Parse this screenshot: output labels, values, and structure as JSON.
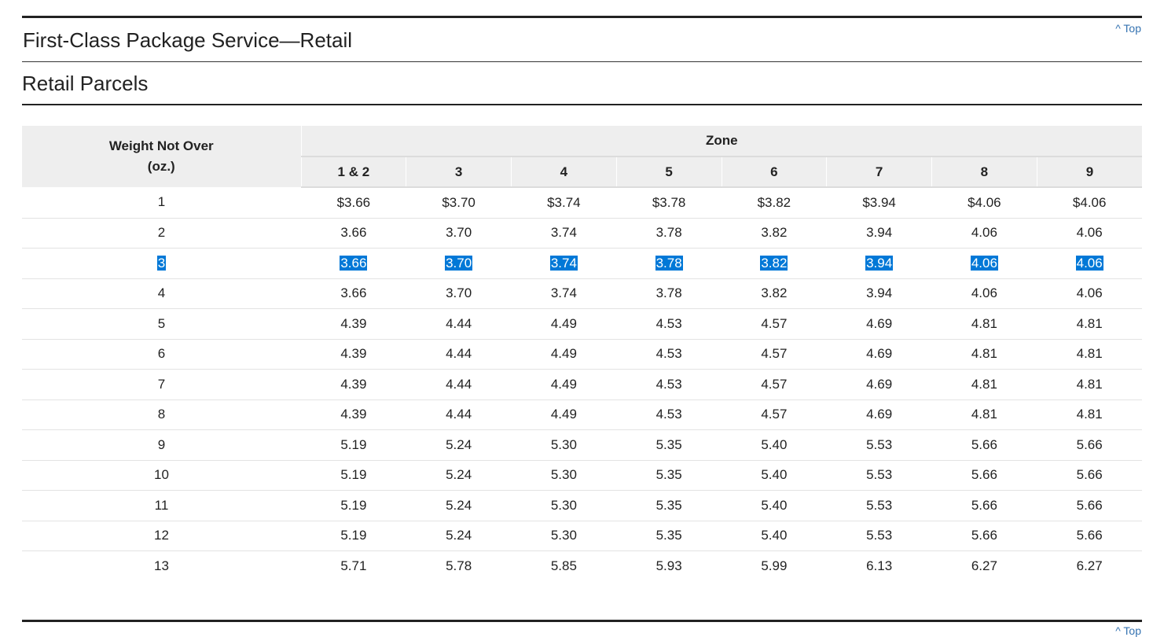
{
  "top_link": "^ Top",
  "service_title": "First-Class Package Service—Retail",
  "section_title": "Retail Parcels",
  "table": {
    "weight_header_line1": "Weight Not Over",
    "weight_header_line2": "(oz.)",
    "zone_header": "Zone",
    "zones": [
      "1 & 2",
      "3",
      "4",
      "5",
      "6",
      "7",
      "8",
      "9"
    ],
    "selected_row_index": 2,
    "selection_color": "#0078d7",
    "rows": [
      {
        "weight": "1",
        "prices": [
          "$3.66",
          "$3.70",
          "$3.74",
          "$3.78",
          "$3.82",
          "$3.94",
          "$4.06",
          "$4.06"
        ]
      },
      {
        "weight": "2",
        "prices": [
          "3.66",
          "3.70",
          "3.74",
          "3.78",
          "3.82",
          "3.94",
          "4.06",
          "4.06"
        ]
      },
      {
        "weight": "3",
        "prices": [
          "3.66",
          "3.70",
          "3.74",
          "3.78",
          "3.82",
          "3.94",
          "4.06",
          "4.06"
        ]
      },
      {
        "weight": "4",
        "prices": [
          "3.66",
          "3.70",
          "3.74",
          "3.78",
          "3.82",
          "3.94",
          "4.06",
          "4.06"
        ]
      },
      {
        "weight": "5",
        "prices": [
          "4.39",
          "4.44",
          "4.49",
          "4.53",
          "4.57",
          "4.69",
          "4.81",
          "4.81"
        ]
      },
      {
        "weight": "6",
        "prices": [
          "4.39",
          "4.44",
          "4.49",
          "4.53",
          "4.57",
          "4.69",
          "4.81",
          "4.81"
        ]
      },
      {
        "weight": "7",
        "prices": [
          "4.39",
          "4.44",
          "4.49",
          "4.53",
          "4.57",
          "4.69",
          "4.81",
          "4.81"
        ]
      },
      {
        "weight": "8",
        "prices": [
          "4.39",
          "4.44",
          "4.49",
          "4.53",
          "4.57",
          "4.69",
          "4.81",
          "4.81"
        ]
      },
      {
        "weight": "9",
        "prices": [
          "5.19",
          "5.24",
          "5.30",
          "5.35",
          "5.40",
          "5.53",
          "5.66",
          "5.66"
        ]
      },
      {
        "weight": "10",
        "prices": [
          "5.19",
          "5.24",
          "5.30",
          "5.35",
          "5.40",
          "5.53",
          "5.66",
          "5.66"
        ]
      },
      {
        "weight": "11",
        "prices": [
          "5.19",
          "5.24",
          "5.30",
          "5.35",
          "5.40",
          "5.53",
          "5.66",
          "5.66"
        ]
      },
      {
        "weight": "12",
        "prices": [
          "5.19",
          "5.24",
          "5.30",
          "5.35",
          "5.40",
          "5.53",
          "5.66",
          "5.66"
        ]
      },
      {
        "weight": "13",
        "prices": [
          "5.71",
          "5.78",
          "5.85",
          "5.93",
          "5.99",
          "6.13",
          "6.27",
          "6.27"
        ]
      }
    ]
  },
  "bottom_top_link": "^ Top"
}
